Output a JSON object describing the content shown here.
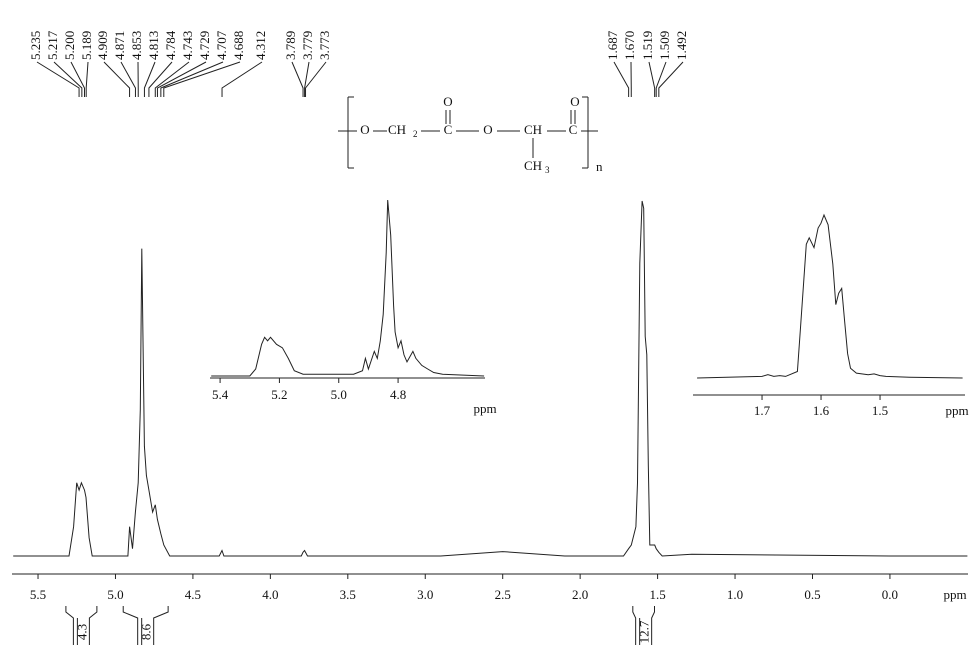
{
  "chart_data": [
    {
      "type": "line",
      "x_label": "ppm",
      "xlim": [
        5.668,
        -0.504
      ],
      "ylim": [
        0,
        100
      ],
      "xticks": [
        5.5,
        {
          "value": 5,
          "label": "5.0"
        },
        4.5,
        {
          "value": 4,
          "label": "4.0"
        },
        3.5,
        {
          "value": 3,
          "label": "3.0"
        },
        2.5,
        {
          "value": 2,
          "label": "2.0"
        },
        1.5,
        {
          "value": 1,
          "label": "1.0"
        },
        0.5,
        {
          "value": 0,
          "label": "0.0"
        }
      ],
      "x": [
        5.66,
        5.3,
        5.27,
        5.25,
        5.235,
        5.22,
        5.2,
        5.19,
        5.17,
        5.15,
        4.92,
        4.909,
        4.89,
        4.871,
        4.853,
        4.84,
        4.83,
        4.813,
        4.8,
        4.784,
        4.76,
        4.743,
        4.729,
        4.707,
        4.688,
        4.65,
        4.33,
        4.312,
        4.3,
        3.8,
        3.789,
        3.779,
        3.773,
        3.76,
        2.9,
        2.5,
        2.1,
        1.72,
        1.687,
        1.67,
        1.64,
        1.63,
        1.615,
        1.6,
        1.59,
        1.58,
        1.57,
        1.56,
        1.55,
        1.519,
        1.509,
        1.492,
        1.47,
        1.28,
        0.0,
        -0.5
      ],
      "values": [
        0,
        0,
        8,
        20,
        18,
        20,
        18,
        16,
        5,
        0,
        0,
        8,
        2,
        12,
        20,
        40,
        84,
        30,
        22,
        18,
        12,
        14,
        10,
        6,
        3,
        0,
        0,
        1.5,
        0,
        0,
        1,
        1.5,
        1,
        0,
        0,
        1.2,
        0,
        0,
        2,
        3,
        8,
        20,
        80,
        97,
        95,
        60,
        55,
        25,
        3,
        3,
        2,
        1,
        0,
        0.5,
        0,
        0
      ],
      "peak_labels": [
        {
          "value": 5.235,
          "label": "5.235"
        },
        {
          "value": 5.217,
          "label": "5.217"
        },
        {
          "value": 5.2,
          "label": "5.200"
        },
        {
          "value": 5.189,
          "label": "5.189"
        },
        {
          "value": 4.909,
          "label": "4.909"
        },
        {
          "value": 4.871,
          "label": "4.871"
        },
        {
          "value": 4.853,
          "label": "4.853"
        },
        {
          "value": 4.813,
          "label": "4.813"
        },
        {
          "value": 4.784,
          "label": "4.784"
        },
        {
          "value": 4.743,
          "label": "4.743"
        },
        {
          "value": 4.729,
          "label": "4.729"
        },
        {
          "value": 4.707,
          "label": "4.707"
        },
        {
          "value": 4.688,
          "label": "4.688"
        },
        {
          "value": 4.312,
          "label": "4.312"
        },
        {
          "value": 3.789,
          "label": "3.789"
        },
        {
          "value": 3.779,
          "label": "3.779"
        },
        {
          "value": 3.773,
          "label": "3.773"
        },
        {
          "value": 1.687,
          "label": "1.687"
        },
        {
          "value": 1.67,
          "label": "1.670"
        },
        {
          "value": 1.519,
          "label": "1.519"
        },
        {
          "value": 1.509,
          "label": "1.509"
        },
        {
          "value": 1.492,
          "label": "1.492"
        }
      ],
      "integrals": [
        {
          "from": 5.32,
          "to": 5.12,
          "value": 4.3
        },
        {
          "from": 4.95,
          "to": 4.66,
          "value": 8.6
        },
        {
          "from": 1.66,
          "to": 1.52,
          "value": 12.7
        }
      ]
    },
    {
      "type": "line",
      "x_label": "ppm",
      "xlim": [
        5.434,
        4.507
      ],
      "ylim": [
        0,
        100
      ],
      "xticks": [
        5.4,
        5.2,
        {
          "value": 5,
          "label": "5.0"
        },
        4.8
      ],
      "x": [
        5.43,
        5.3,
        5.28,
        5.26,
        5.25,
        5.24,
        5.23,
        5.21,
        5.19,
        5.17,
        5.15,
        5.12,
        4.95,
        4.92,
        4.91,
        4.9,
        4.88,
        4.87,
        4.86,
        4.85,
        4.84,
        4.835,
        4.825,
        4.815,
        4.81,
        4.8,
        4.79,
        4.78,
        4.77,
        4.75,
        4.74,
        4.72,
        4.7,
        4.68,
        4.65,
        4.51
      ],
      "values": [
        0,
        0,
        4,
        18,
        22,
        20,
        22,
        18,
        16,
        10,
        3,
        1,
        1,
        3,
        10,
        4,
        14,
        10,
        20,
        35,
        70,
        100,
        80,
        40,
        25,
        16,
        20,
        12,
        8,
        14,
        10,
        6,
        4,
        2,
        1,
        0
      ]
    },
    {
      "type": "line",
      "x_label": "ppm",
      "xlim": [
        1.817,
        1.356
      ],
      "ylim": [
        0,
        100
      ],
      "xticks": [
        1.7,
        1.6,
        1.5
      ],
      "x": [
        1.81,
        1.7,
        1.69,
        1.68,
        1.67,
        1.66,
        1.64,
        1.635,
        1.625,
        1.62,
        1.612,
        1.605,
        1.6,
        1.595,
        1.588,
        1.58,
        1.575,
        1.57,
        1.565,
        1.56,
        1.555,
        1.55,
        1.54,
        1.52,
        1.51,
        1.5,
        1.49,
        1.45,
        1.36
      ],
      "values": [
        0,
        1,
        2,
        1,
        1.5,
        1,
        4,
        30,
        82,
        86,
        80,
        92,
        95,
        100,
        94,
        70,
        45,
        52,
        55,
        35,
        15,
        6,
        3,
        2,
        2.5,
        1.5,
        1,
        0.5,
        0
      ]
    }
  ],
  "structure": {
    "labels": [
      "O",
      "CH",
      "2",
      "C",
      "O",
      "O",
      "CH",
      "C",
      "O",
      "CH",
      "3",
      "n"
    ]
  }
}
